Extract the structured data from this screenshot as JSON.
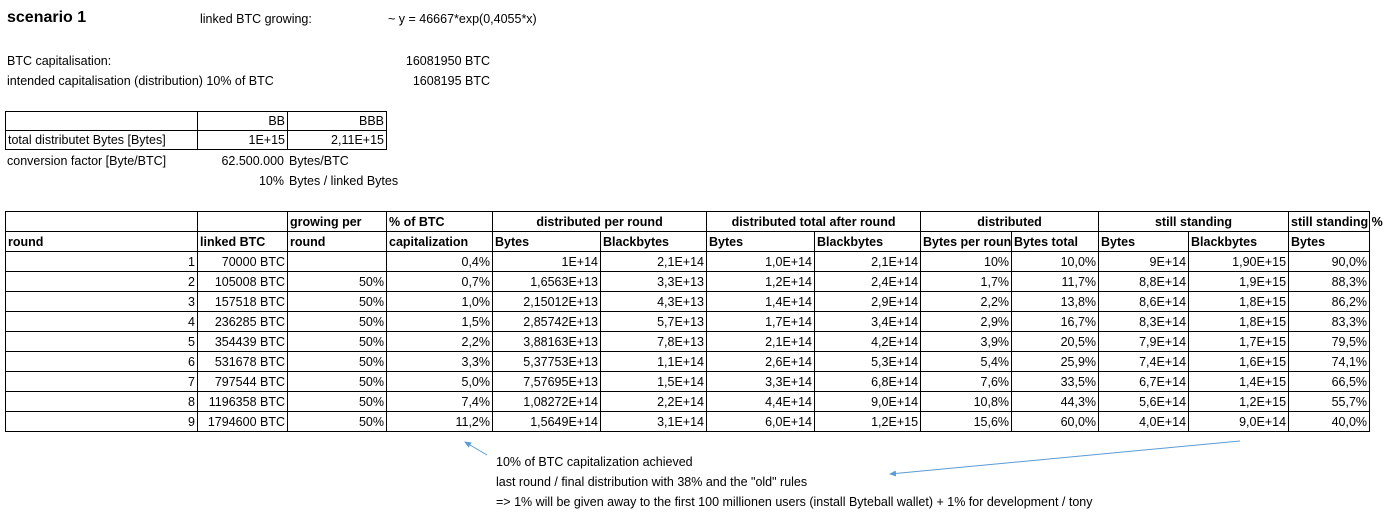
{
  "header": {
    "scenario": "scenario 1",
    "linked_growing_label": "linked BTC growing:",
    "formula": "~ y = 46667*exp(0,4055*x)",
    "btc_cap_label": "BTC capitalisation:",
    "btc_cap_value": "16081950 BTC",
    "intended_cap_label": "intended capitalisation (distribution) 10% of BTC",
    "intended_cap_value": "1608195 BTC"
  },
  "small_table": {
    "col_bb": "BB",
    "col_bbb": "BBB",
    "row_label": "total distributet Bytes [Bytes]",
    "bb_value": "1E+15",
    "bbb_value": "2,11E+15"
  },
  "conversion": {
    "label": "conversion factor [Byte/BTC]",
    "value": "62.500.000",
    "unit": "Bytes/BTC",
    "pct": "10%",
    "pct_unit": "Bytes / linked Bytes"
  },
  "main_table": {
    "head1": {
      "growing": "growing per",
      "pct_btc": "% of BTC",
      "dist_round": "distributed per round",
      "dist_total": "distributed total after round",
      "distributed": "distributed",
      "still": "still standing",
      "still_pct": "still standing %"
    },
    "head2": {
      "round": "round",
      "linked": "linked BTC",
      "growing": "round",
      "pct_btc": "capitalization",
      "bytes": "Bytes",
      "blackbytes": "Blackbytes",
      "bytes_per_round": "Bytes per round",
      "bytes_total": "Bytes total"
    },
    "rows": [
      [
        "1",
        "70000 BTC",
        "",
        "0,4%",
        "1E+14",
        "2,1E+14",
        "1,0E+14",
        "2,1E+14",
        "10%",
        "10,0%",
        "9E+14",
        "1,90E+15",
        "90,0%"
      ],
      [
        "2",
        "105008 BTC",
        "50%",
        "0,7%",
        "1,6563E+13",
        "3,3E+13",
        "1,2E+14",
        "2,4E+14",
        "1,7%",
        "11,7%",
        "8,8E+14",
        "1,9E+15",
        "88,3%"
      ],
      [
        "3",
        "157518 BTC",
        "50%",
        "1,0%",
        "2,15012E+13",
        "4,3E+13",
        "1,4E+14",
        "2,9E+14",
        "2,2%",
        "13,8%",
        "8,6E+14",
        "1,8E+15",
        "86,2%"
      ],
      [
        "4",
        "236285 BTC",
        "50%",
        "1,5%",
        "2,85742E+13",
        "5,7E+13",
        "1,7E+14",
        "3,4E+14",
        "2,9%",
        "16,7%",
        "8,3E+14",
        "1,8E+15",
        "83,3%"
      ],
      [
        "5",
        "354439 BTC",
        "50%",
        "2,2%",
        "3,88163E+13",
        "7,8E+13",
        "2,1E+14",
        "4,2E+14",
        "3,9%",
        "20,5%",
        "7,9E+14",
        "1,7E+15",
        "79,5%"
      ],
      [
        "6",
        "531678 BTC",
        "50%",
        "3,3%",
        "5,37753E+13",
        "1,1E+14",
        "2,6E+14",
        "5,3E+14",
        "5,4%",
        "25,9%",
        "7,4E+14",
        "1,6E+15",
        "74,1%"
      ],
      [
        "7",
        "797544 BTC",
        "50%",
        "5,0%",
        "7,57695E+13",
        "1,5E+14",
        "3,3E+14",
        "6,8E+14",
        "7,6%",
        "33,5%",
        "6,7E+14",
        "1,4E+15",
        "66,5%"
      ],
      [
        "8",
        "1196358 BTC",
        "50%",
        "7,4%",
        "1,08272E+14",
        "2,2E+14",
        "4,4E+14",
        "9,0E+14",
        "10,8%",
        "44,3%",
        "5,6E+14",
        "1,2E+15",
        "55,7%"
      ],
      [
        "9",
        "1794600 BTC",
        "50%",
        "11,2%",
        "1,5649E+14",
        "3,1E+14",
        "6,0E+14",
        "1,2E+15",
        "15,6%",
        "60,0%",
        "4,0E+14",
        "9,0E+14",
        "40,0%"
      ]
    ]
  },
  "notes": {
    "line1": "10% of BTC capitalization achieved",
    "line2": "last round / final distribution with 38% and the \"old\" rules",
    "line3": "=> 1% will be given away to the first 100 millionen users (install Byteball wallet) + 1% for development / tony"
  },
  "colors": {
    "arrow": "#5b9bd5"
  }
}
